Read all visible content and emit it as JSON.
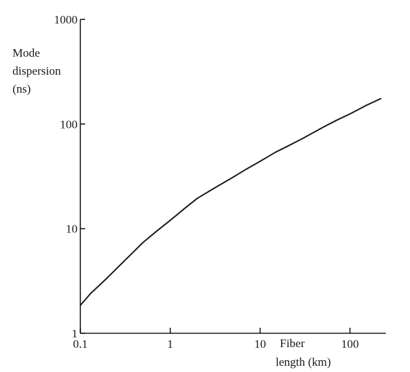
{
  "chart_data": {
    "type": "line",
    "xscale": "log",
    "yscale": "log",
    "xlim": [
      0.1,
      250
    ],
    "ylim": [
      1,
      1000
    ],
    "ylabel": [
      "Mode",
      "dispersion",
      "(ns)"
    ],
    "xlabel": [
      "Fiber",
      "length (km)"
    ],
    "x_ticks": [
      {
        "value": 0.1,
        "label": "0.1"
      },
      {
        "value": 1,
        "label": "1"
      },
      {
        "value": 10,
        "label": "10"
      },
      {
        "value": 100,
        "label": "100"
      }
    ],
    "y_ticks": [
      {
        "value": 1,
        "label": "1"
      },
      {
        "value": 10,
        "label": "10"
      },
      {
        "value": 100,
        "label": "100"
      },
      {
        "value": 1000,
        "label": "1000"
      }
    ],
    "grid": false,
    "series": [
      {
        "color": "#1a1a1a",
        "x": [
          0.1,
          0.13,
          0.2,
          0.3,
          0.5,
          0.7,
          1,
          1.5,
          2,
          3,
          5,
          7,
          10,
          15,
          20,
          30,
          50,
          70,
          100,
          150,
          220
        ],
        "y": [
          1.85,
          2.4,
          3.4,
          4.8,
          7.4,
          9.4,
          12,
          16,
          19.5,
          24,
          31,
          37,
          44,
          54,
          61,
          73,
          93,
          108,
          125,
          150,
          175
        ]
      }
    ]
  }
}
